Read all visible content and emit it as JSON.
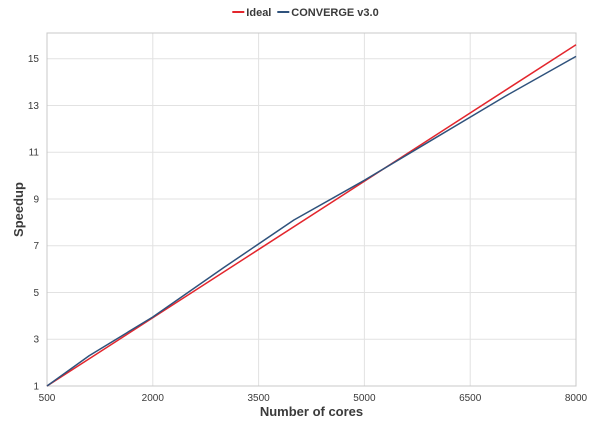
{
  "chart_data": {
    "type": "line",
    "title": "",
    "xlabel": "Number of cores",
    "ylabel": "Speedup",
    "xlim": [
      500,
      8000
    ],
    "ylim": [
      1,
      16.1
    ],
    "xticks": [
      500,
      2000,
      3500,
      5000,
      6500,
      8000
    ],
    "yticks": [
      1,
      3,
      5,
      7,
      9,
      11,
      13,
      15
    ],
    "grid": true,
    "legend_position": "top-center",
    "series": [
      {
        "name": "Ideal",
        "color": "#e3262d",
        "x": [
          500,
          8000
        ],
        "y": [
          1,
          15.6
        ]
      },
      {
        "name": "CONVERGE v3.0",
        "color": "#2f527c",
        "x": [
          500,
          1100,
          2000,
          3000,
          4000,
          5000,
          6000,
          7000,
          8000
        ],
        "y": [
          1,
          2.3,
          3.95,
          6.05,
          8.1,
          9.8,
          11.6,
          13.4,
          15.1
        ]
      }
    ]
  }
}
